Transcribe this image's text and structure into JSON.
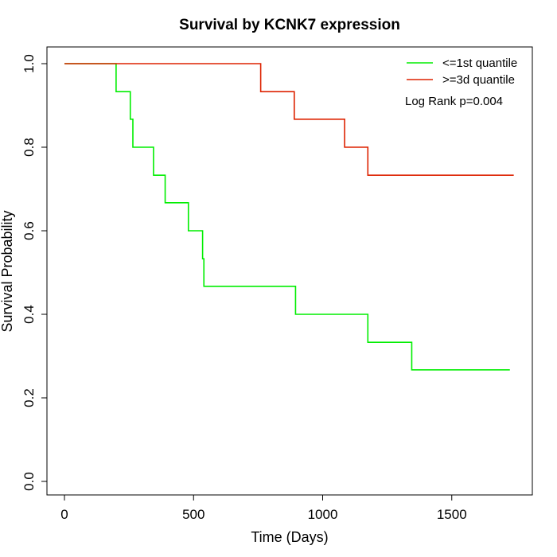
{
  "chart_data": {
    "type": "line",
    "step": true,
    "title": "Survival by KCNK7 expression",
    "xlabel": "Time (Days)",
    "ylabel": "Survival Probability",
    "xlim": [
      0,
      1800
    ],
    "ylim": [
      0,
      1
    ],
    "x_ticks": [
      0,
      500,
      1000,
      1500
    ],
    "x_tick_labels": [
      "0",
      "500",
      "1000",
      "1500"
    ],
    "y_ticks": [
      0,
      0.2,
      0.4,
      0.6,
      0.8,
      1.0
    ],
    "y_tick_labels": [
      "0.0",
      "0.2",
      "0.4",
      "0.6",
      "0.8",
      "1.0"
    ],
    "grid": false,
    "legend_position": "top-right",
    "annotation": "Log Rank p=0.004",
    "series": [
      {
        "name": "<=1st quantile",
        "color": "#00ee00",
        "x": [
          0,
          200,
          255,
          265,
          345,
          390,
          480,
          535,
          540,
          895,
          1175,
          1345,
          1725
        ],
        "y": [
          1.0,
          0.933,
          0.867,
          0.8,
          0.733,
          0.667,
          0.6,
          0.533,
          0.467,
          0.4,
          0.333,
          0.267,
          0.267
        ]
      },
      {
        "name": ">=3d quantile",
        "color": "#dd2200",
        "x": [
          0,
          760,
          890,
          1085,
          1175,
          1740
        ],
        "y": [
          1.0,
          0.933,
          0.867,
          0.8,
          0.733,
          0.733
        ]
      }
    ]
  }
}
